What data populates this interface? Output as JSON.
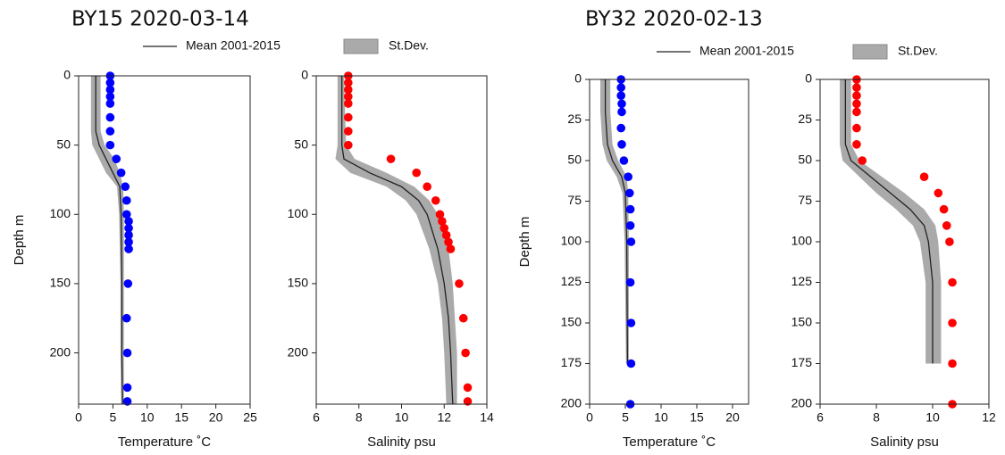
{
  "stations": [
    {
      "title": "BY15 2020-03-14",
      "legend": {
        "mean": "Mean 2001-2015",
        "stdev": "St.Dev."
      }
    },
    {
      "title": "BY32 2020-02-13",
      "legend": {
        "mean": "Mean 2001-2015",
        "stdev": "St.Dev."
      }
    }
  ],
  "chart_data": [
    {
      "type": "profile",
      "xlabel": "Temperature ˚C",
      "ylabel": "Depth m",
      "xlim": [
        0,
        25
      ],
      "ylim": [
        0,
        237
      ],
      "xticks": [
        0,
        5,
        10,
        15,
        20,
        25
      ],
      "yticks": [
        0,
        50,
        100,
        150,
        200
      ],
      "observed": {
        "color": "#0000ff",
        "depth": [
          0,
          5,
          10,
          15,
          20,
          30,
          40,
          50,
          60,
          70,
          80,
          90,
          100,
          105,
          110,
          115,
          120,
          125,
          150,
          175,
          200,
          225,
          235
        ],
        "values": [
          4.6,
          4.6,
          4.6,
          4.6,
          4.6,
          4.6,
          4.6,
          4.6,
          5.5,
          6.2,
          6.8,
          7,
          7,
          7.3,
          7.3,
          7.3,
          7.3,
          7.3,
          7.2,
          7,
          7.1,
          7.1,
          7.1
        ]
      },
      "mean": {
        "color": "#222222",
        "depth": [
          0,
          40,
          50,
          60,
          70,
          80,
          100,
          150,
          200,
          237
        ],
        "values": [
          2.5,
          2.5,
          3,
          4,
          5,
          6,
          6.2,
          6.3,
          6.3,
          6.4
        ]
      },
      "stdev": {
        "color": "#aaaaaa",
        "depth": [
          0,
          40,
          50,
          60,
          70,
          80,
          100,
          150,
          200,
          237
        ],
        "lower": [
          1.8,
          1.8,
          2,
          3,
          4,
          5.6,
          5.9,
          6.1,
          6.1,
          6.2
        ],
        "upper": [
          3.2,
          3.2,
          3.8,
          5.2,
          6.0,
          6.5,
          6.6,
          6.6,
          6.6,
          6.6
        ]
      }
    },
    {
      "type": "profile",
      "xlabel": "Salinity psu",
      "xlim": [
        6,
        14
      ],
      "ylim": [
        0,
        237
      ],
      "xticks": [
        6,
        8,
        10,
        12,
        14
      ],
      "yticks": [
        0,
        50,
        100,
        150,
        200
      ],
      "observed": {
        "color": "#ff0000",
        "depth": [
          0,
          5,
          10,
          15,
          20,
          30,
          40,
          50,
          60,
          70,
          80,
          90,
          100,
          105,
          110,
          115,
          120,
          125,
          150,
          175,
          200,
          225,
          235
        ],
        "values": [
          7.5,
          7.5,
          7.5,
          7.5,
          7.5,
          7.5,
          7.5,
          7.5,
          9.5,
          10.7,
          11.2,
          11.6,
          11.8,
          11.9,
          12.0,
          12.1,
          12.2,
          12.3,
          12.7,
          12.9,
          13.0,
          13.1,
          13.1
        ]
      },
      "mean": {
        "color": "#222222",
        "depth": [
          0,
          50,
          60,
          70,
          80,
          90,
          100,
          125,
          150,
          175,
          200,
          237
        ],
        "values": [
          7.2,
          7.2,
          7.3,
          8.5,
          10,
          10.8,
          11.2,
          11.7,
          12,
          12.2,
          12.3,
          12.4
        ]
      },
      "stdev": {
        "color": "#aaaaaa",
        "depth": [
          0,
          50,
          60,
          70,
          80,
          90,
          100,
          125,
          150,
          175,
          200,
          237
        ],
        "lower": [
          7.0,
          7.0,
          6.9,
          7.6,
          9.3,
          10.2,
          10.7,
          11.3,
          11.7,
          11.9,
          12.0,
          12.1
        ],
        "upper": [
          7.3,
          7.4,
          7.8,
          9.3,
          10.6,
          11.3,
          11.7,
          12.2,
          12.4,
          12.5,
          12.6,
          12.6
        ]
      }
    },
    {
      "type": "profile",
      "xlabel": "Temperature ˚C",
      "ylabel": "Depth m",
      "xlim": [
        0,
        22.25
      ],
      "ylim": [
        0,
        200
      ],
      "xticks": [
        0,
        5,
        10,
        15,
        20
      ],
      "yticks": [
        0,
        25,
        50,
        75,
        100,
        125,
        150,
        175,
        200
      ],
      "observed": {
        "color": "#0000ff",
        "depth": [
          0,
          5,
          10,
          15,
          20,
          30,
          40,
          50,
          60,
          70,
          80,
          90,
          100,
          125,
          150,
          175,
          200
        ],
        "values": [
          4.4,
          4.4,
          4.4,
          4.5,
          4.5,
          4.4,
          4.5,
          4.8,
          5.4,
          5.6,
          5.7,
          5.7,
          5.8,
          5.7,
          5.8,
          5.8,
          5.7
        ]
      },
      "mean": {
        "color": "#222222",
        "depth": [
          0,
          20,
          40,
          50,
          60,
          70,
          100,
          175
        ],
        "values": [
          2.2,
          2.2,
          2.5,
          3.2,
          4.5,
          5,
          5.2,
          5.3
        ]
      },
      "stdev": {
        "color": "#aaaaaa",
        "depth": [
          0,
          20,
          40,
          50,
          60,
          70,
          100,
          175
        ],
        "lower": [
          1.5,
          1.5,
          1.8,
          2.4,
          3.8,
          4.6,
          4.9,
          5.1
        ],
        "upper": [
          2.9,
          2.9,
          3.2,
          4.0,
          5.2,
          5.4,
          5.5,
          5.5
        ]
      }
    },
    {
      "type": "profile",
      "xlabel": "Salinity psu",
      "xlim": [
        6,
        12
      ],
      "ylim": [
        0,
        200
      ],
      "xticks": [
        6,
        8,
        10,
        12
      ],
      "yticks": [
        0,
        25,
        50,
        75,
        100,
        125,
        150,
        175,
        200
      ],
      "observed": {
        "color": "#ff0000",
        "depth": [
          0,
          5,
          10,
          15,
          20,
          30,
          40,
          50,
          60,
          70,
          80,
          90,
          100,
          125,
          150,
          175,
          200
        ],
        "values": [
          7.3,
          7.3,
          7.3,
          7.3,
          7.3,
          7.3,
          7.3,
          7.5,
          9.7,
          10.2,
          10.4,
          10.5,
          10.6,
          10.7,
          10.7,
          10.7,
          10.7
        ]
      },
      "mean": {
        "color": "#222222",
        "depth": [
          0,
          40,
          50,
          60,
          70,
          80,
          90,
          100,
          125,
          175
        ],
        "values": [
          6.9,
          6.9,
          7.1,
          7.8,
          8.5,
          9.2,
          9.7,
          9.85,
          10,
          10
        ]
      },
      "stdev": {
        "color": "#aaaaaa",
        "depth": [
          0,
          40,
          50,
          60,
          70,
          80,
          90,
          100,
          125,
          175
        ],
        "lower": [
          6.7,
          6.7,
          6.8,
          7.4,
          8.0,
          8.7,
          9.3,
          9.55,
          9.75,
          9.75
        ],
        "upper": [
          7.1,
          7.1,
          7.4,
          8.2,
          9.0,
          9.7,
          10.1,
          10.2,
          10.3,
          10.3
        ]
      }
    }
  ]
}
